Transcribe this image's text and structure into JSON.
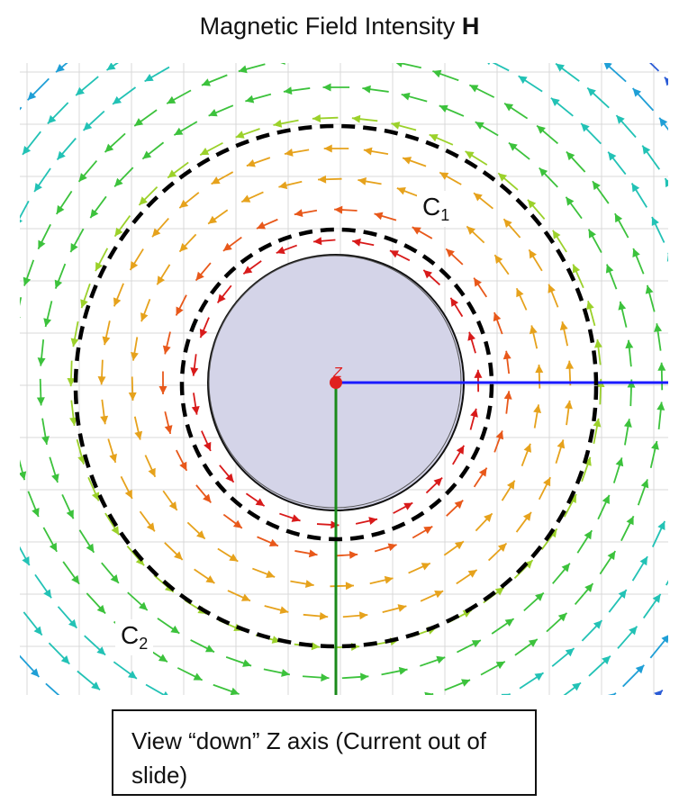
{
  "title": {
    "text": "Magnetic Field Intensity ",
    "bold": "H"
  },
  "labels": {
    "c1": {
      "main": "C",
      "sub": "1"
    },
    "c2": {
      "main": "C",
      "sub": "2"
    }
  },
  "caption": "View “down” Z axis (Current out of slide)",
  "axis_label": "Z",
  "colors": {
    "conductor_fill": "#d4d4e8",
    "x_axis": "#1a1aff",
    "y_axis": "#1a8a1a",
    "origin": "#e02020",
    "grid": "#d8d8d8",
    "contour": "#000000"
  },
  "field_colors": [
    "#1f1fbf",
    "#2b5cd6",
    "#1f9fd6",
    "#22c2b5",
    "#3cc23c",
    "#9bd12a",
    "#e6a21c",
    "#e8581a",
    "#d81a1a"
  ]
}
